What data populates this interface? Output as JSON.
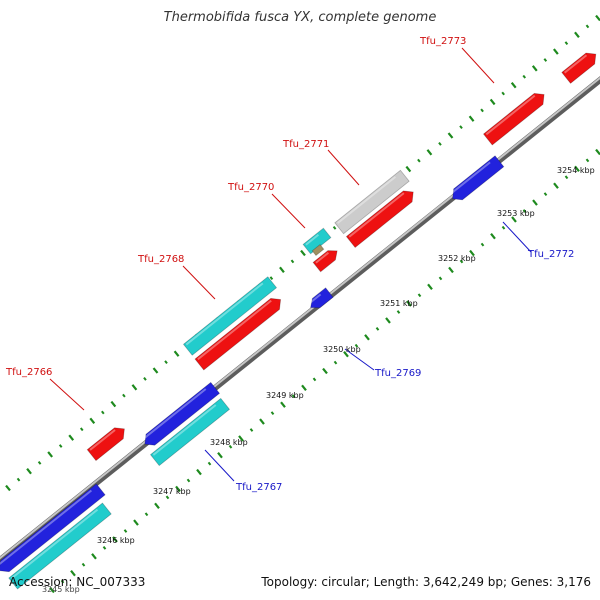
{
  "title": "Thermobifida fusca YX, complete genome",
  "footer": {
    "accession": "Accession: NC_007333",
    "summary": "Topology: circular; Length: 3,642,249 bp; Genes: 3,176"
  },
  "colors": {
    "backbone": "#777777",
    "forward_tick": "#1e8a1e",
    "reverse_gene_label": "#1818c8",
    "forward_gene_label": "#d01010"
  },
  "kbp_labels": [
    "3245 kbp",
    "3246 kbp",
    "3247 kbp",
    "3248 kbp",
    "3249 kbp",
    "3250 kbp",
    "3251 kbp",
    "3252 kbp",
    "3253 kbp",
    "3254 kbp"
  ],
  "genes": [
    {
      "name": "Tfu_2766",
      "strand": "forward",
      "color": "#ee1111"
    },
    {
      "name": "Tfu_2767",
      "strand": "reverse",
      "color": "#2222dd"
    },
    {
      "name": "Tfu_2768",
      "strand": "forward",
      "color": "#ee1111"
    },
    {
      "name": "Tfu_2769",
      "strand": "reverse",
      "color": "#2222dd"
    },
    {
      "name": "Tfu_2770",
      "strand": "forward",
      "color": "#ee1111"
    },
    {
      "name": "Tfu_2771",
      "strand": "forward",
      "color": "#cccccc"
    },
    {
      "name": "Tfu_2772",
      "strand": "reverse",
      "color": "#2222dd"
    },
    {
      "name": "Tfu_2773",
      "strand": "forward",
      "color": "#ee1111"
    }
  ]
}
